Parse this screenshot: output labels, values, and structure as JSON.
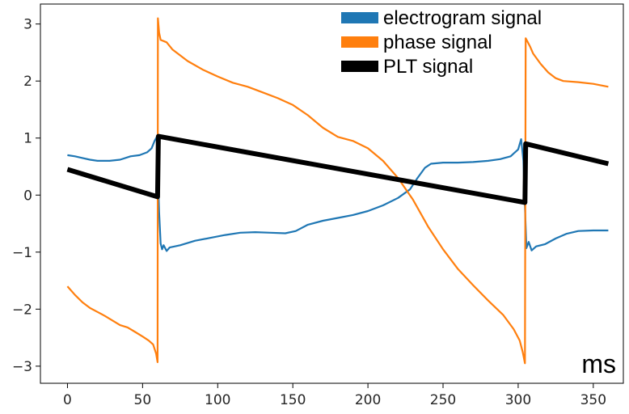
{
  "chart_data": {
    "type": "line",
    "title": "",
    "xlabel": "",
    "ylabel": "",
    "unit_label": "ms",
    "xlim": [
      -18,
      370
    ],
    "ylim": [
      -3.3,
      3.35
    ],
    "xticks": [
      0,
      50,
      100,
      150,
      200,
      250,
      300,
      350
    ],
    "yticks": [
      -3,
      -2,
      -1,
      0,
      1,
      2,
      3
    ],
    "grid": false,
    "legend_position": "top-right",
    "series": [
      {
        "name": "electrogram signal",
        "color": "#1f77b4",
        "points": [
          [
            0,
            0.7
          ],
          [
            5,
            0.68
          ],
          [
            10,
            0.65
          ],
          [
            15,
            0.62
          ],
          [
            20,
            0.6
          ],
          [
            28,
            0.6
          ],
          [
            35,
            0.62
          ],
          [
            42,
            0.68
          ],
          [
            48,
            0.7
          ],
          [
            53,
            0.75
          ],
          [
            56,
            0.82
          ],
          [
            58,
            0.95
          ],
          [
            59.5,
            1.02
          ],
          [
            60,
            0.6
          ],
          [
            61,
            -0.3
          ],
          [
            62,
            -0.85
          ],
          [
            63,
            -0.95
          ],
          [
            64,
            -0.88
          ],
          [
            66,
            -0.98
          ],
          [
            68,
            -0.92
          ],
          [
            75,
            -0.88
          ],
          [
            85,
            -0.8
          ],
          [
            95,
            -0.75
          ],
          [
            105,
            -0.7
          ],
          [
            115,
            -0.66
          ],
          [
            125,
            -0.65
          ],
          [
            135,
            -0.66
          ],
          [
            145,
            -0.67
          ],
          [
            152,
            -0.63
          ],
          [
            160,
            -0.52
          ],
          [
            170,
            -0.45
          ],
          [
            180,
            -0.4
          ],
          [
            190,
            -0.35
          ],
          [
            200,
            -0.28
          ],
          [
            210,
            -0.18
          ],
          [
            220,
            -0.05
          ],
          [
            228,
            0.1
          ],
          [
            233,
            0.3
          ],
          [
            238,
            0.48
          ],
          [
            242,
            0.55
          ],
          [
            250,
            0.57
          ],
          [
            260,
            0.57
          ],
          [
            270,
            0.58
          ],
          [
            280,
            0.6
          ],
          [
            288,
            0.63
          ],
          [
            295,
            0.68
          ],
          [
            300,
            0.8
          ],
          [
            302,
            0.98
          ],
          [
            303.5,
            0.6
          ],
          [
            304.5,
            -0.2
          ],
          [
            305.5,
            -0.93
          ],
          [
            307,
            -0.82
          ],
          [
            309,
            -0.97
          ],
          [
            312,
            -0.9
          ],
          [
            318,
            -0.86
          ],
          [
            325,
            -0.76
          ],
          [
            332,
            -0.68
          ],
          [
            340,
            -0.63
          ],
          [
            350,
            -0.62
          ],
          [
            360,
            -0.62
          ]
        ]
      },
      {
        "name": "phase signal",
        "color": "#ff7f0e",
        "points": [
          [
            0,
            -1.6
          ],
          [
            5,
            -1.75
          ],
          [
            10,
            -1.88
          ],
          [
            15,
            -1.98
          ],
          [
            20,
            -2.05
          ],
          [
            25,
            -2.12
          ],
          [
            30,
            -2.2
          ],
          [
            35,
            -2.28
          ],
          [
            40,
            -2.32
          ],
          [
            45,
            -2.4
          ],
          [
            50,
            -2.48
          ],
          [
            54,
            -2.55
          ],
          [
            57,
            -2.62
          ],
          [
            59,
            -2.78
          ],
          [
            60,
            -2.93
          ],
          [
            60.2,
            3.1
          ],
          [
            61,
            2.85
          ],
          [
            62,
            2.72
          ],
          [
            64,
            2.7
          ],
          [
            66,
            2.68
          ],
          [
            70,
            2.55
          ],
          [
            80,
            2.35
          ],
          [
            90,
            2.2
          ],
          [
            100,
            2.08
          ],
          [
            110,
            1.97
          ],
          [
            120,
            1.9
          ],
          [
            130,
            1.8
          ],
          [
            140,
            1.7
          ],
          [
            150,
            1.58
          ],
          [
            160,
            1.4
          ],
          [
            170,
            1.18
          ],
          [
            180,
            1.02
          ],
          [
            190,
            0.95
          ],
          [
            200,
            0.82
          ],
          [
            210,
            0.6
          ],
          [
            220,
            0.3
          ],
          [
            230,
            -0.08
          ],
          [
            240,
            -0.55
          ],
          [
            250,
            -0.95
          ],
          [
            260,
            -1.3
          ],
          [
            270,
            -1.58
          ],
          [
            280,
            -1.85
          ],
          [
            290,
            -2.1
          ],
          [
            297,
            -2.35
          ],
          [
            301,
            -2.55
          ],
          [
            303,
            -2.75
          ],
          [
            304.5,
            -2.95
          ],
          [
            305,
            2.75
          ],
          [
            306,
            2.7
          ],
          [
            308,
            2.6
          ],
          [
            310,
            2.48
          ],
          [
            315,
            2.3
          ],
          [
            320,
            2.15
          ],
          [
            325,
            2.05
          ],
          [
            330,
            2.0
          ],
          [
            340,
            1.98
          ],
          [
            350,
            1.95
          ],
          [
            360,
            1.9
          ]
        ]
      },
      {
        "name": "PLT signal",
        "color": "#000000",
        "points": [
          [
            0,
            0.45
          ],
          [
            60,
            -0.03
          ],
          [
            60.5,
            1.03
          ],
          [
            304.5,
            -0.13
          ],
          [
            305,
            0.9
          ],
          [
            360,
            0.55
          ]
        ]
      }
    ]
  }
}
